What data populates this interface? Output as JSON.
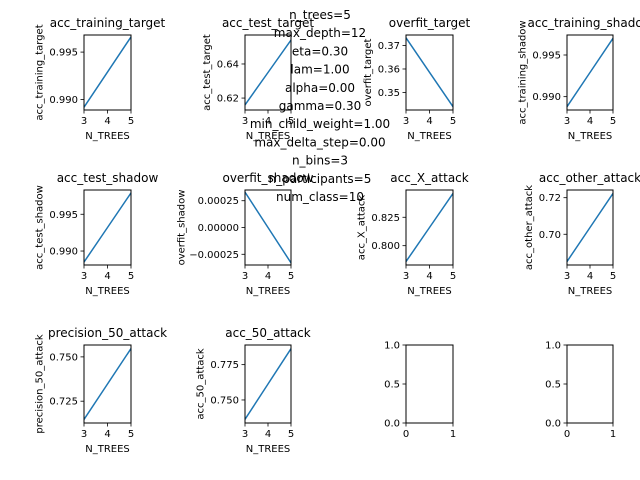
{
  "suptitle_lines": [
    "n_trees=5",
    "max_depth=12",
    "eta=0.30",
    "lam=1.00",
    "alpha=0.00",
    "gamma=0.30",
    "min_child_weight=1.00",
    "max_delta_step=0.00",
    "n_bins=3",
    "n_participants=5",
    "num_class=10"
  ],
  "chart_data": [
    {
      "type": "line",
      "title": "acc_training_target",
      "xlabel": "N_TREES",
      "ylabel": "acc_training_target",
      "x": [
        3,
        4,
        5
      ],
      "y": [
        0.9892,
        0.9929,
        0.9966
      ],
      "xlim": [
        3,
        5
      ],
      "ylim": [
        0.9889,
        0.9968
      ],
      "xticks": [
        3,
        4,
        5
      ],
      "yticks": [
        0.99,
        0.995
      ],
      "ytick_labels": [
        "0.990",
        "0.995"
      ]
    },
    {
      "type": "line",
      "title": "acc_test_target",
      "xlabel": "N_TREES",
      "ylabel": "acc_test_target",
      "x": [
        3,
        4,
        5
      ],
      "y": [
        0.616,
        0.635,
        0.654
      ],
      "xlim": [
        3,
        5
      ],
      "ylim": [
        0.613,
        0.657
      ],
      "xticks": [
        3,
        4,
        5
      ],
      "yticks": [
        0.62,
        0.64
      ],
      "ytick_labels": [
        "0.62",
        "0.64"
      ]
    },
    {
      "type": "line",
      "title": "overfit_target",
      "xlabel": "N_TREES",
      "ylabel": "overfit_target",
      "x": [
        3,
        4,
        5
      ],
      "y": [
        0.3733,
        0.3586,
        0.3439
      ],
      "xlim": [
        3,
        5
      ],
      "ylim": [
        0.3425,
        0.3745
      ],
      "xticks": [
        3,
        4,
        5
      ],
      "yticks": [
        0.35,
        0.36,
        0.37
      ],
      "ytick_labels": [
        "0.35",
        "0.36",
        "0.37"
      ]
    },
    {
      "type": "line",
      "title": "acc_training_shadow",
      "xlabel": "N_TREES",
      "ylabel": "acc_training_shadow",
      "x": [
        3,
        4,
        5
      ],
      "y": [
        0.9888,
        0.9929,
        0.997
      ],
      "xlim": [
        3,
        5
      ],
      "ylim": [
        0.9884,
        0.9974
      ],
      "xticks": [
        3,
        4,
        5
      ],
      "yticks": [
        0.99,
        0.995
      ],
      "ytick_labels": [
        "0.990",
        "0.995"
      ]
    },
    {
      "type": "line",
      "title": "acc_test_shadow",
      "xlabel": "N_TREES",
      "ylabel": "acc_test_shadow",
      "x": [
        3,
        4,
        5
      ],
      "y": [
        0.9885,
        0.9932,
        0.9979
      ],
      "xlim": [
        3,
        5
      ],
      "ylim": [
        0.9881,
        0.9983
      ],
      "xticks": [
        3,
        4,
        5
      ],
      "yticks": [
        0.99,
        0.995
      ],
      "ytick_labels": [
        "0.990",
        "0.995"
      ]
    },
    {
      "type": "line",
      "title": "overfit_shadow",
      "xlabel": "N_TREES",
      "ylabel": "overfit_shadow",
      "x": [
        3,
        4,
        5
      ],
      "y": [
        0.00033,
        0.0,
        -0.00033
      ],
      "xlim": [
        3,
        5
      ],
      "ylim": [
        -0.00035,
        0.00035
      ],
      "xticks": [
        3,
        4,
        5
      ],
      "yticks": [
        -0.00025,
        0.0,
        0.00025
      ],
      "ytick_labels": [
        "−0.00025",
        "0.00000",
        "0.00025"
      ]
    },
    {
      "type": "line",
      "title": "acc_X_attack",
      "xlabel": "N_TREES",
      "ylabel": "acc_X_attack",
      "x": [
        3,
        4,
        5
      ],
      "y": [
        0.786,
        0.816,
        0.846
      ],
      "xlim": [
        3,
        5
      ],
      "ylim": [
        0.783,
        0.849
      ],
      "xticks": [
        3,
        4,
        5
      ],
      "yticks": [
        0.8,
        0.825
      ],
      "ytick_labels": [
        "0.800",
        "0.825"
      ]
    },
    {
      "type": "line",
      "title": "acc_other_attack",
      "xlabel": "N_TREES",
      "ylabel": "acc_other_attack",
      "x": [
        3,
        4,
        5
      ],
      "y": [
        0.6851,
        0.7037,
        0.7223
      ],
      "xlim": [
        3,
        5
      ],
      "ylim": [
        0.6832,
        0.7242
      ],
      "xticks": [
        3,
        4,
        5
      ],
      "yticks": [
        0.7,
        0.72
      ],
      "ytick_labels": [
        "0.70",
        "0.72"
      ]
    },
    {
      "type": "line",
      "title": "precision_50_attack",
      "xlabel": "N_TREES",
      "ylabel": "precision_50_attack",
      "x": [
        3,
        4,
        5
      ],
      "y": [
        0.7147,
        0.7347,
        0.7547
      ],
      "xlim": [
        3,
        5
      ],
      "ylim": [
        0.7127,
        0.7567
      ],
      "xticks": [
        3,
        4,
        5
      ],
      "yticks": [
        0.725,
        0.75
      ],
      "ytick_labels": [
        "0.725",
        "0.750"
      ]
    },
    {
      "type": "line",
      "title": "acc_50_attack",
      "xlabel": "N_TREES",
      "ylabel": "acc_50_attack",
      "x": [
        3,
        4,
        5
      ],
      "y": [
        0.7363,
        0.7613,
        0.7863
      ],
      "xlim": [
        3,
        5
      ],
      "ylim": [
        0.7337,
        0.7889
      ],
      "xticks": [
        3,
        4,
        5
      ],
      "yticks": [
        0.75,
        0.775
      ],
      "ytick_labels": [
        "0.750",
        "0.775"
      ]
    },
    {
      "type": "empty",
      "title": "",
      "xlabel": "",
      "ylabel": "",
      "x": [],
      "y": [],
      "xlim": [
        0,
        1
      ],
      "ylim": [
        0,
        1
      ],
      "xticks": [
        0,
        1
      ],
      "xtick_labels": [
        "0",
        "1"
      ],
      "yticks": [
        0.0,
        0.5,
        1.0
      ],
      "ytick_labels": [
        "0.0",
        "0.5",
        "1.0"
      ]
    },
    {
      "type": "empty",
      "title": "",
      "xlabel": "",
      "ylabel": "",
      "x": [],
      "y": [],
      "xlim": [
        0,
        1
      ],
      "ylim": [
        0,
        1
      ],
      "xticks": [
        0,
        1
      ],
      "xtick_labels": [
        "0",
        "1"
      ],
      "yticks": [
        0.0,
        0.5,
        1.0
      ],
      "ytick_labels": [
        "0.0",
        "0.5",
        "1.0"
      ]
    }
  ]
}
